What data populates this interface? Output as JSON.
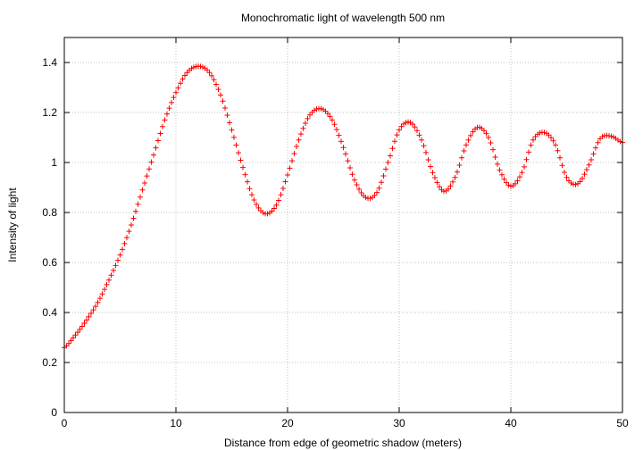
{
  "chart_data": {
    "type": "scatter",
    "title": "Monochromatic light of wavelength 500 nm",
    "xlabel": "Distance from edge of geometric shadow (meters)",
    "ylabel": "Intensity of light",
    "xlim": [
      0,
      50
    ],
    "ylim": [
      0,
      1.5
    ],
    "xticks": [
      0,
      10,
      20,
      30,
      40,
      50
    ],
    "yticks": [
      0,
      0.2,
      0.4,
      0.6,
      0.8,
      1,
      1.2,
      1.4
    ],
    "grid": true,
    "marker": "plus",
    "series": [
      {
        "color": "#ff0000",
        "x": [
          0,
          1,
          2,
          3,
          4,
          5,
          6,
          7,
          8,
          9,
          10,
          11,
          12,
          13,
          14,
          15,
          16,
          17,
          18,
          19,
          20,
          21,
          22,
          23,
          24,
          25,
          26,
          27,
          28,
          29,
          30,
          31,
          32,
          33,
          34,
          35,
          36,
          37,
          38,
          39,
          40,
          41,
          42,
          43,
          44,
          45,
          46,
          47,
          48,
          49,
          50
        ],
        "y": [
          0.26,
          0.31,
          0.37,
          0.44,
          0.53,
          0.63,
          0.75,
          0.89,
          1.03,
          1.17,
          1.28,
          1.36,
          1.385,
          1.36,
          1.27,
          1.13,
          0.98,
          0.85,
          0.795,
          0.83,
          0.95,
          1.09,
          1.19,
          1.215,
          1.17,
          1.06,
          0.93,
          0.86,
          0.88,
          1.0,
          1.13,
          1.16,
          1.09,
          0.96,
          0.885,
          0.94,
          1.07,
          1.14,
          1.1,
          0.97,
          0.905,
          0.96,
          1.09,
          1.12,
          1.07,
          0.94,
          0.915,
          0.99,
          1.095,
          1.105,
          1.08
        ]
      }
    ]
  }
}
